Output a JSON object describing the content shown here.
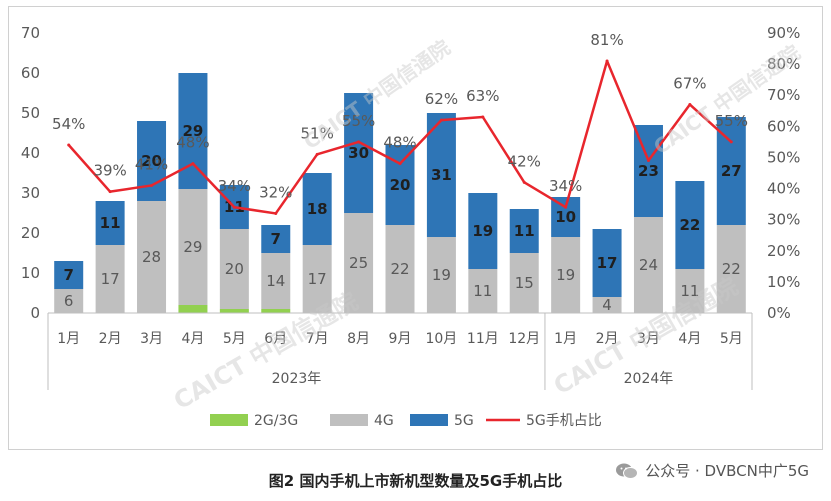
{
  "chart_data": {
    "type": "bar",
    "title": "",
    "categories": [
      "1月",
      "2月",
      "3月",
      "4月",
      "5月",
      "6月",
      "7月",
      "8月",
      "9月",
      "10月",
      "11月",
      "12月",
      "1月",
      "2月",
      "3月",
      "4月",
      "5月"
    ],
    "year_groups": [
      {
        "label": "2023年",
        "count": 12
      },
      {
        "label": "2024年",
        "count": 5
      }
    ],
    "series": [
      {
        "name": "2G/3G",
        "kind": "stacked-bar",
        "color": "#92d050",
        "values": [
          0,
          0,
          0,
          2,
          1,
          1,
          0,
          0,
          0,
          0,
          0,
          0,
          0,
          0,
          0,
          0,
          0
        ]
      },
      {
        "name": "4G",
        "kind": "stacked-bar",
        "color": "#bfbfbf",
        "values": [
          6,
          17,
          28,
          29,
          20,
          14,
          17,
          25,
          22,
          19,
          11,
          15,
          19,
          4,
          24,
          11,
          22
        ]
      },
      {
        "name": "5G",
        "kind": "stacked-bar",
        "color": "#2e75b6",
        "values": [
          7,
          11,
          20,
          29,
          11,
          7,
          18,
          30,
          20,
          31,
          19,
          11,
          10,
          17,
          23,
          22,
          27
        ]
      },
      {
        "name": "5G手机占比",
        "kind": "line",
        "axis": "right",
        "color": "#e8262d",
        "values": [
          54,
          39,
          41,
          48,
          34,
          32,
          51,
          55,
          48,
          62,
          63,
          42,
          34,
          81,
          49,
          67,
          55
        ]
      }
    ],
    "bar_labels_4g": [
      "6",
      "17",
      "28",
      "29",
      "20",
      "14",
      "17",
      "25",
      "22",
      "19",
      "11",
      "15",
      "19",
      "4",
      "24",
      "11",
      "22"
    ],
    "bar_labels_5g": [
      "7",
      "11",
      "20",
      "29",
      "11",
      "7",
      "18",
      "30",
      "20",
      "31",
      "19",
      "11",
      "10",
      "17",
      "23",
      "22",
      "27"
    ],
    "line_labels": [
      "54%",
      "39%",
      "41%",
      "48%",
      "34%",
      "32%",
      "51%",
      "55%",
      "48%",
      "62%",
      "63%",
      "42%",
      "34%",
      "81%",
      "",
      "67%",
      "55%"
    ],
    "y_left": {
      "min": 0,
      "max": 70,
      "ticks": [
        "0",
        "10",
        "20",
        "30",
        "40",
        "50",
        "60",
        "70"
      ]
    },
    "y_right": {
      "min": 0,
      "max": 90,
      "ticks": [
        "0%",
        "10%",
        "20%",
        "30%",
        "40%",
        "50%",
        "60%",
        "70%",
        "80%",
        "90%"
      ]
    },
    "grid": false,
    "legend_position": "bottom"
  },
  "watermark": "CAICT 中国信通院",
  "caption": "图2  国内手机上市新机型数量及5G手机占比",
  "source": "公众号 · DVBCN中广5G"
}
